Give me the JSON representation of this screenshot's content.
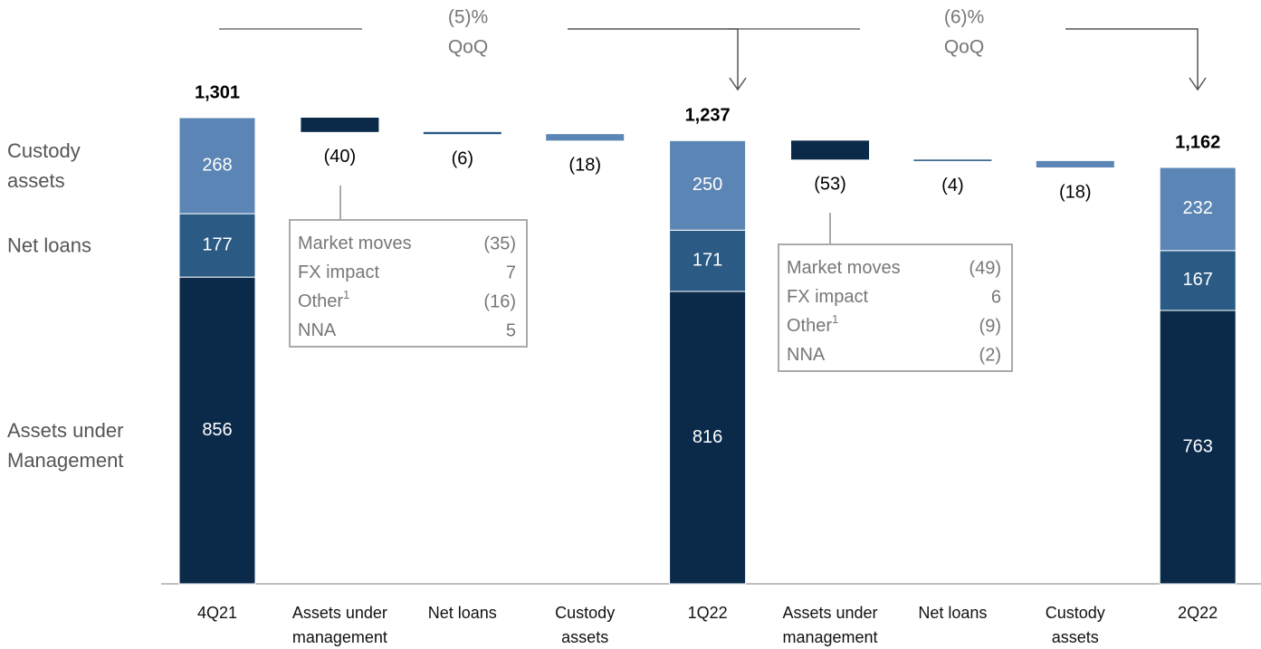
{
  "chart_data": {
    "type": "waterfall",
    "categories": [
      "4Q21",
      "Assets under management",
      "Net loans",
      "Custody assets",
      "1Q22",
      "Assets under management",
      "Net loans",
      "Custody assets",
      "2Q22"
    ],
    "series": [
      {
        "name": "Assets under Management",
        "color": "#0b2a4a",
        "values": [
          856,
          null,
          null,
          null,
          816,
          null,
          null,
          null,
          763
        ],
        "changes": [
          null,
          -40,
          null,
          null,
          null,
          -53,
          null,
          null,
          null
        ],
        "change_labels": [
          null,
          "(40)",
          null,
          null,
          null,
          "(53)",
          null,
          null,
          null
        ]
      },
      {
        "name": "Net loans",
        "color": "#2b5a84",
        "values": [
          177,
          null,
          null,
          null,
          171,
          null,
          null,
          null,
          167
        ],
        "changes": [
          null,
          null,
          -6,
          null,
          null,
          null,
          -4,
          null,
          null
        ],
        "change_labels": [
          null,
          null,
          "(6)",
          null,
          null,
          null,
          "(4)",
          null,
          null
        ]
      },
      {
        "name": "Custody assets",
        "color": "#5b85b4",
        "values": [
          268,
          null,
          null,
          null,
          250,
          null,
          null,
          null,
          232
        ],
        "changes": [
          null,
          null,
          null,
          -18,
          null,
          null,
          null,
          -18,
          null
        ],
        "change_labels": [
          null,
          null,
          null,
          "(18)",
          null,
          null,
          null,
          "(18)",
          null
        ]
      }
    ],
    "totals": [
      1301,
      null,
      null,
      null,
      1237,
      null,
      null,
      null,
      1162
    ],
    "total_labels": [
      "1,301",
      null,
      null,
      null,
      "1,237",
      null,
      null,
      null,
      "1,162"
    ],
    "qoq": [
      {
        "label": "(5)%",
        "unit": "QoQ"
      },
      {
        "label": "(6)%",
        "unit": "QoQ"
      }
    ],
    "breakdowns": [
      {
        "rows": [
          [
            "Market moves",
            "(35)"
          ],
          [
            "FX impact",
            "7"
          ],
          [
            "Other",
            "(16)"
          ],
          [
            "NNA",
            "5"
          ]
        ],
        "note": "1"
      },
      {
        "rows": [
          [
            "Market moves",
            "(49)"
          ],
          [
            "FX impact",
            "6"
          ],
          [
            "Other",
            "(9)"
          ],
          [
            "NNA",
            "(2)"
          ]
        ],
        "note": "1"
      }
    ]
  }
}
